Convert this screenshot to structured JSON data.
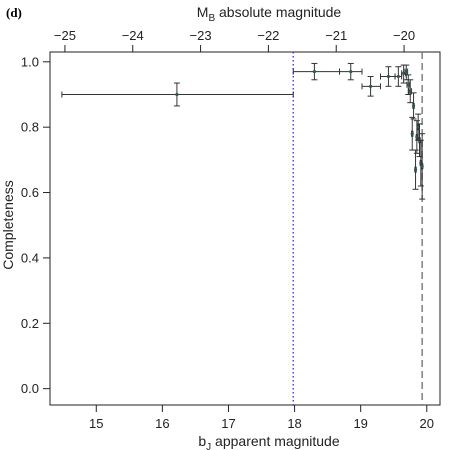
{
  "panel_label": "(d)",
  "chart_data": {
    "type": "scatter",
    "ylabel": "Completeness",
    "xlabel": {
      "base": "b",
      "sub": "J",
      "rest": " apparent magnitude"
    },
    "x2label": {
      "base": "M",
      "sub": "B",
      "rest": " absolute magnitude"
    },
    "xlim": [
      14.3,
      20.2
    ],
    "ylim": [
      -0.05,
      1.03
    ],
    "x2lim": [
      -25.22,
      -19.47
    ],
    "x_ticks": [
      15,
      16,
      17,
      18,
      19,
      20
    ],
    "y_ticks": [
      0.0,
      0.2,
      0.4,
      0.6,
      0.8,
      1.0
    ],
    "x_tick_labels": [
      "15",
      "16",
      "17",
      "18",
      "19",
      "20"
    ],
    "y_tick_labels": [
      "0.0",
      "0.2",
      "0.4",
      "0.6",
      "0.8",
      "1.0"
    ],
    "x2_ticks": [
      -25,
      -24,
      -23,
      -22,
      -21,
      -20
    ],
    "x2_tick_labels": [
      "−25",
      "−24",
      "−23",
      "−22",
      "−21",
      "−20"
    ],
    "reference_lines": [
      {
        "x": 17.98,
        "style": "dotted",
        "color": "#3b3bff"
      },
      {
        "x": 19.93,
        "style": "dashed",
        "color": "#777777"
      }
    ],
    "points": [
      {
        "x": 16.22,
        "y": 0.9,
        "xlo": 14.48,
        "xhi": 17.98,
        "ylo": 0.865,
        "yhi": 0.935
      },
      {
        "x": 18.3,
        "y": 0.97,
        "xlo": 17.98,
        "xhi": 18.68,
        "ylo": 0.945,
        "yhi": 0.995
      },
      {
        "x": 18.85,
        "y": 0.97,
        "xlo": 18.68,
        "xhi": 19.02,
        "ylo": 0.945,
        "yhi": 0.995
      },
      {
        "x": 19.15,
        "y": 0.925,
        "xlo": 19.02,
        "xhi": 19.3,
        "ylo": 0.895,
        "yhi": 0.955
      },
      {
        "x": 19.42,
        "y": 0.955,
        "xlo": 19.3,
        "xhi": 19.52,
        "ylo": 0.925,
        "yhi": 0.985
      },
      {
        "x": 19.57,
        "y": 0.955,
        "xlo": 19.52,
        "xhi": 19.62,
        "ylo": 0.925,
        "yhi": 0.985
      },
      {
        "x": 19.65,
        "y": 0.965,
        "xlo": 19.62,
        "xhi": 19.68,
        "ylo": 0.935,
        "yhi": 0.99
      },
      {
        "x": 19.69,
        "y": 0.97,
        "xlo": 19.67,
        "xhi": 19.71,
        "ylo": 0.945,
        "yhi": 0.99
      },
      {
        "x": 19.72,
        "y": 0.93,
        "xlo": 19.7,
        "xhi": 19.74,
        "ylo": 0.9,
        "yhi": 0.96
      },
      {
        "x": 19.75,
        "y": 0.91,
        "xlo": 19.73,
        "xhi": 19.77,
        "ylo": 0.875,
        "yhi": 0.945
      },
      {
        "x": 19.78,
        "y": 0.78,
        "xlo": 19.77,
        "xhi": 19.79,
        "ylo": 0.73,
        "yhi": 0.83
      },
      {
        "x": 19.8,
        "y": 0.865,
        "xlo": 19.79,
        "xhi": 19.81,
        "ylo": 0.825,
        "yhi": 0.905
      },
      {
        "x": 19.83,
        "y": 0.67,
        "xlo": 19.82,
        "xhi": 19.84,
        "ylo": 0.61,
        "yhi": 0.73
      },
      {
        "x": 19.85,
        "y": 0.77,
        "xlo": 19.84,
        "xhi": 19.86,
        "ylo": 0.72,
        "yhi": 0.82
      },
      {
        "x": 19.87,
        "y": 0.8,
        "xlo": 19.86,
        "xhi": 19.88,
        "ylo": 0.76,
        "yhi": 0.84
      },
      {
        "x": 19.89,
        "y": 0.76,
        "xlo": 19.88,
        "xhi": 19.9,
        "ylo": 0.71,
        "yhi": 0.81
      },
      {
        "x": 19.91,
        "y": 0.69,
        "xlo": 19.9,
        "xhi": 19.92,
        "ylo": 0.62,
        "yhi": 0.76
      },
      {
        "x": 19.93,
        "y": 0.68,
        "xlo": 19.92,
        "xhi": 19.94,
        "ylo": 0.58,
        "yhi": 0.78
      }
    ],
    "colors": {
      "axis": "#222222",
      "errorbar": "#333333",
      "point": "#2f5a5a"
    }
  }
}
